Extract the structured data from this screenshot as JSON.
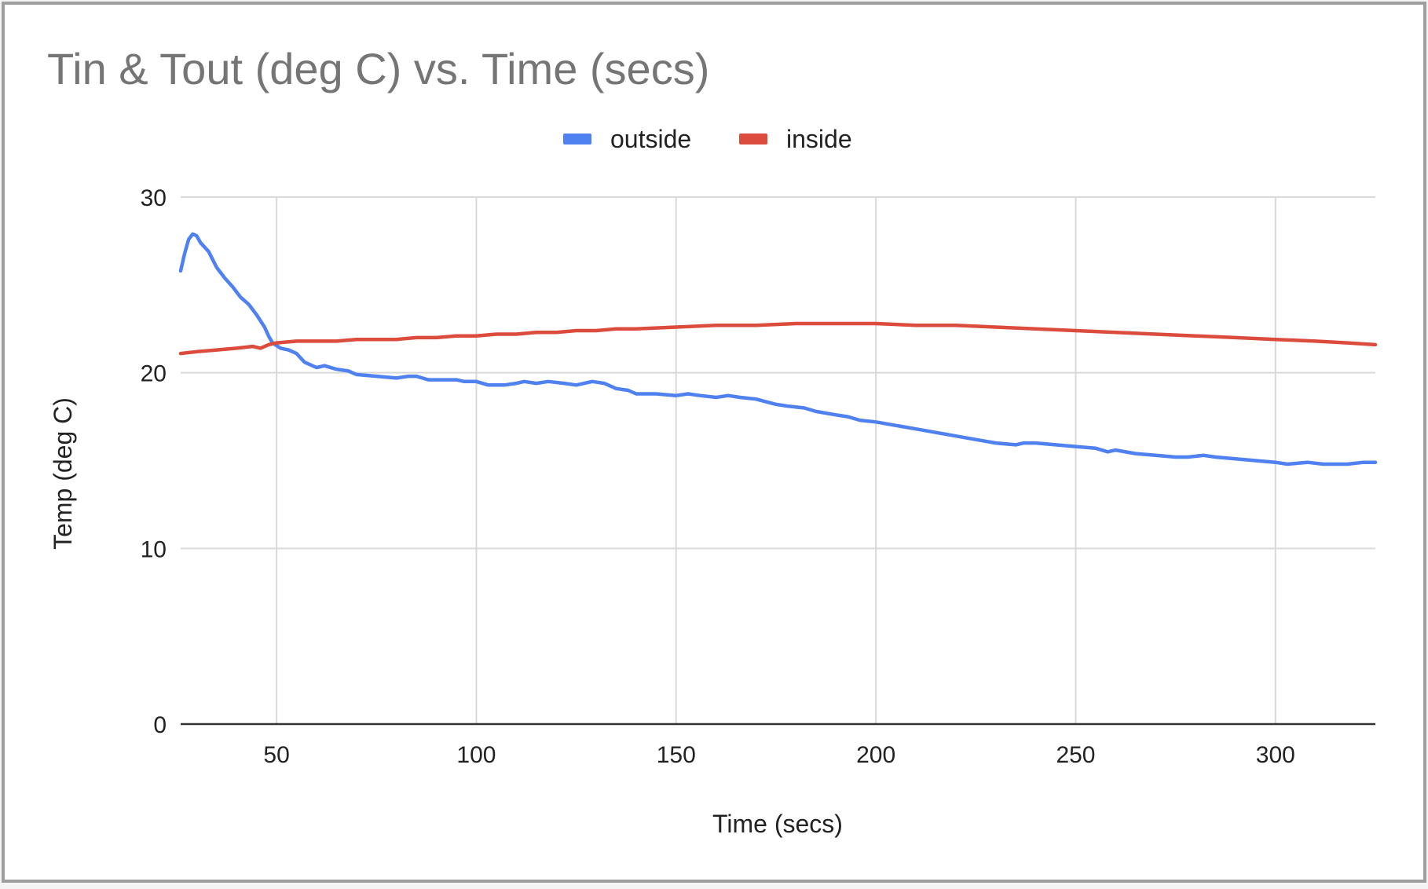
{
  "chart_data": {
    "type": "line",
    "title": "Tin & Tout (deg C) vs. Time (secs)",
    "xlabel": "Time (secs)",
    "ylabel": "Temp (deg C)",
    "xlim": [
      26,
      325
    ],
    "ylim": [
      0,
      30
    ],
    "x_ticks": [
      50,
      100,
      150,
      200,
      250,
      300
    ],
    "y_ticks": [
      0,
      10,
      20,
      30
    ],
    "grid": true,
    "legend_position": "top",
    "colors": {
      "outside": "#4f81f0",
      "inside": "#dc4c3c",
      "grid": "#d9d9d9",
      "axis": "#333333"
    },
    "series": [
      {
        "name": "outside",
        "color": "#4f81f0",
        "points": [
          [
            26,
            25.8
          ],
          [
            27,
            26.8
          ],
          [
            28,
            27.6
          ],
          [
            29,
            27.9
          ],
          [
            30,
            27.8
          ],
          [
            31,
            27.4
          ],
          [
            33,
            26.9
          ],
          [
            35,
            26.0
          ],
          [
            37,
            25.4
          ],
          [
            39,
            24.9
          ],
          [
            41,
            24.3
          ],
          [
            43,
            23.9
          ],
          [
            45,
            23.3
          ],
          [
            47,
            22.6
          ],
          [
            48,
            22.1
          ],
          [
            49,
            21.7
          ],
          [
            51,
            21.4
          ],
          [
            53,
            21.3
          ],
          [
            55,
            21.1
          ],
          [
            57,
            20.6
          ],
          [
            60,
            20.3
          ],
          [
            62,
            20.4
          ],
          [
            65,
            20.2
          ],
          [
            68,
            20.1
          ],
          [
            70,
            19.9
          ],
          [
            75,
            19.8
          ],
          [
            80,
            19.7
          ],
          [
            83,
            19.8
          ],
          [
            85,
            19.8
          ],
          [
            88,
            19.6
          ],
          [
            92,
            19.6
          ],
          [
            95,
            19.6
          ],
          [
            97,
            19.5
          ],
          [
            100,
            19.5
          ],
          [
            103,
            19.3
          ],
          [
            107,
            19.3
          ],
          [
            110,
            19.4
          ],
          [
            112,
            19.5
          ],
          [
            115,
            19.4
          ],
          [
            118,
            19.5
          ],
          [
            122,
            19.4
          ],
          [
            125,
            19.3
          ],
          [
            127,
            19.4
          ],
          [
            129,
            19.5
          ],
          [
            132,
            19.4
          ],
          [
            135,
            19.1
          ],
          [
            138,
            19.0
          ],
          [
            140,
            18.8
          ],
          [
            145,
            18.8
          ],
          [
            150,
            18.7
          ],
          [
            153,
            18.8
          ],
          [
            156,
            18.7
          ],
          [
            160,
            18.6
          ],
          [
            163,
            18.7
          ],
          [
            166,
            18.6
          ],
          [
            170,
            18.5
          ],
          [
            175,
            18.2
          ],
          [
            178,
            18.1
          ],
          [
            182,
            18.0
          ],
          [
            185,
            17.8
          ],
          [
            190,
            17.6
          ],
          [
            193,
            17.5
          ],
          [
            196,
            17.3
          ],
          [
            200,
            17.2
          ],
          [
            205,
            17.0
          ],
          [
            210,
            16.8
          ],
          [
            215,
            16.6
          ],
          [
            220,
            16.4
          ],
          [
            225,
            16.2
          ],
          [
            230,
            16.0
          ],
          [
            235,
            15.9
          ],
          [
            237,
            16.0
          ],
          [
            240,
            16.0
          ],
          [
            245,
            15.9
          ],
          [
            250,
            15.8
          ],
          [
            255,
            15.7
          ],
          [
            258,
            15.5
          ],
          [
            260,
            15.6
          ],
          [
            265,
            15.4
          ],
          [
            270,
            15.3
          ],
          [
            275,
            15.2
          ],
          [
            278,
            15.2
          ],
          [
            282,
            15.3
          ],
          [
            285,
            15.2
          ],
          [
            290,
            15.1
          ],
          [
            295,
            15.0
          ],
          [
            300,
            14.9
          ],
          [
            303,
            14.8
          ],
          [
            308,
            14.9
          ],
          [
            312,
            14.8
          ],
          [
            318,
            14.8
          ],
          [
            322,
            14.9
          ],
          [
            325,
            14.9
          ]
        ]
      },
      {
        "name": "inside",
        "color": "#dc4c3c",
        "points": [
          [
            26,
            21.1
          ],
          [
            30,
            21.2
          ],
          [
            35,
            21.3
          ],
          [
            40,
            21.4
          ],
          [
            44,
            21.5
          ],
          [
            46,
            21.4
          ],
          [
            48,
            21.6
          ],
          [
            50,
            21.7
          ],
          [
            55,
            21.8
          ],
          [
            60,
            21.8
          ],
          [
            65,
            21.8
          ],
          [
            70,
            21.9
          ],
          [
            75,
            21.9
          ],
          [
            80,
            21.9
          ],
          [
            85,
            22.0
          ],
          [
            90,
            22.0
          ],
          [
            95,
            22.1
          ],
          [
            100,
            22.1
          ],
          [
            105,
            22.2
          ],
          [
            110,
            22.2
          ],
          [
            115,
            22.3
          ],
          [
            120,
            22.3
          ],
          [
            125,
            22.4
          ],
          [
            130,
            22.4
          ],
          [
            135,
            22.5
          ],
          [
            140,
            22.5
          ],
          [
            150,
            22.6
          ],
          [
            160,
            22.7
          ],
          [
            170,
            22.7
          ],
          [
            180,
            22.8
          ],
          [
            190,
            22.8
          ],
          [
            200,
            22.8
          ],
          [
            210,
            22.7
          ],
          [
            220,
            22.7
          ],
          [
            230,
            22.6
          ],
          [
            240,
            22.5
          ],
          [
            250,
            22.4
          ],
          [
            260,
            22.3
          ],
          [
            270,
            22.2
          ],
          [
            280,
            22.1
          ],
          [
            290,
            22.0
          ],
          [
            300,
            21.9
          ],
          [
            310,
            21.8
          ],
          [
            318,
            21.7
          ],
          [
            325,
            21.6
          ]
        ]
      }
    ]
  }
}
